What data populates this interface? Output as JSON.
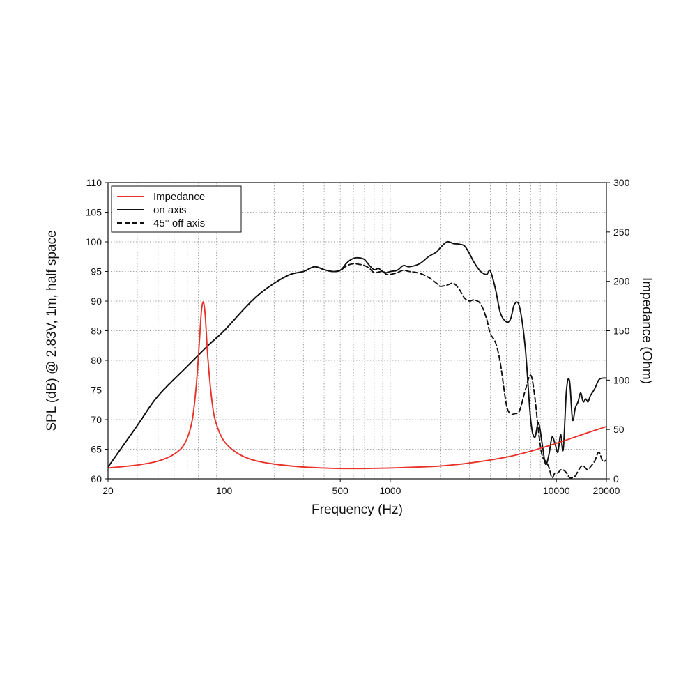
{
  "chart_data": {
    "type": "line",
    "xscale": "log",
    "xlabel": "Frequency (Hz)",
    "ylabel_left": "SPL (dB) @ 2.83V, 1m, half space",
    "ylabel_right": "Impedance (Ohm)",
    "xlim": [
      20,
      20000
    ],
    "ylim_left": [
      60,
      110
    ],
    "ylim_right": [
      0,
      300
    ],
    "xticks": [
      20,
      100,
      500,
      1000,
      10000,
      20000
    ],
    "xtick_labels": [
      "20",
      "100",
      "500",
      "1000",
      "10000",
      "20000"
    ],
    "yticks_left": [
      60,
      65,
      70,
      75,
      80,
      85,
      90,
      95,
      100,
      105,
      110
    ],
    "yticks_left_labels": [
      "60",
      "65",
      "70",
      "75",
      "80",
      "85",
      "90",
      "95",
      "100",
      "105",
      "110"
    ],
    "yticks_right": [
      0,
      50,
      100,
      150,
      200,
      250,
      300
    ],
    "yticks_right_labels": [
      "0",
      "50",
      "100",
      "150",
      "200",
      "250",
      "300"
    ],
    "grid": true,
    "legend_position": "top-left",
    "series": [
      {
        "name": "Impedance",
        "axis": "right",
        "color": "#e8322a",
        "dash": "solid",
        "x": [
          20,
          30,
          40,
          50,
          58,
          64,
          68,
          71,
          73,
          75,
          77,
          80,
          85,
          90,
          100,
          120,
          150,
          200,
          300,
          400,
          500,
          700,
          1000,
          1500,
          2000,
          3000,
          5000,
          7000,
          10000,
          15000,
          20000
        ],
        "y": [
          11,
          14,
          18,
          25,
          36,
          58,
          95,
          140,
          170,
          179,
          165,
          120,
          75,
          55,
          38,
          26,
          19,
          15,
          12,
          11,
          10.5,
          10.5,
          11,
          12,
          13,
          16,
          22,
          28,
          36,
          46,
          53
        ]
      },
      {
        "name": "on axis",
        "axis": "left",
        "color": "#111111",
        "dash": "solid",
        "x": [
          20,
          30,
          40,
          60,
          80,
          100,
          130,
          160,
          200,
          250,
          300,
          350,
          400,
          450,
          500,
          550,
          600,
          650,
          700,
          750,
          800,
          850,
          900,
          950,
          1000,
          1100,
          1200,
          1300,
          1500,
          1700,
          1900,
          2000,
          2200,
          2400,
          2600,
          2800,
          3000,
          3200,
          3500,
          3800,
          4000,
          4300,
          4600,
          5000,
          5300,
          5600,
          6000,
          6500,
          7000,
          7400,
          7800,
          8200,
          8600,
          9000,
          9400,
          9800,
          10200,
          10600,
          11000,
          11500,
          12000,
          12500,
          13000,
          13500,
          14000,
          14500,
          15000,
          15500,
          16000,
          17000,
          18000,
          19000,
          20000
        ],
        "y": [
          62,
          69,
          74,
          79,
          82.5,
          85,
          88.5,
          91,
          93,
          94.5,
          95,
          95.8,
          95.3,
          95,
          95.2,
          96.5,
          97.2,
          97.3,
          97,
          96,
          95.3,
          95.5,
          95,
          94.8,
          95,
          95.2,
          96,
          95.8,
          96.3,
          97.5,
          98.3,
          99,
          100,
          99.7,
          99.6,
          99.3,
          98,
          96.5,
          95,
          94.5,
          95.1,
          92,
          88,
          86.5,
          87,
          89.5,
          89,
          82,
          70,
          67,
          69.5,
          66,
          62.5,
          64,
          67,
          66,
          64.5,
          67.5,
          65,
          75,
          76.5,
          70,
          72,
          73,
          74.5,
          73,
          73.5,
          73,
          74,
          75.2,
          76.7,
          77,
          77
        ]
      },
      {
        "name": "45° off axis",
        "axis": "left",
        "color": "#111111",
        "dash": "dashed",
        "x": [
          20,
          30,
          40,
          60,
          80,
          100,
          130,
          160,
          200,
          250,
          300,
          350,
          400,
          450,
          500,
          550,
          600,
          650,
          700,
          750,
          800,
          850,
          900,
          950,
          1000,
          1100,
          1200,
          1300,
          1500,
          1700,
          1900,
          2000,
          2200,
          2400,
          2600,
          2800,
          3000,
          3200,
          3500,
          3800,
          4000,
          4300,
          4600,
          5000,
          5300,
          5600,
          6000,
          6500,
          7000,
          7400,
          7800,
          8200,
          8600,
          9000,
          9400,
          9800,
          10200,
          10600,
          11000,
          11500,
          12000,
          12500,
          13000,
          13500,
          14000,
          14500,
          15000,
          15500,
          16000,
          17000,
          18000,
          19000,
          20000
        ],
        "y": [
          62,
          69,
          74,
          79,
          82.5,
          85,
          88.5,
          91,
          93,
          94.5,
          95,
          95.8,
          95.3,
          95,
          95.2,
          96,
          96.3,
          96.2,
          96,
          95.5,
          94.8,
          94.9,
          95,
          94.5,
          94.5,
          94.8,
          95.2,
          95,
          94.7,
          94,
          93,
          92.5,
          92.7,
          93,
          92,
          90.5,
          90,
          90.2,
          89.5,
          87,
          84.5,
          83,
          79.5,
          72.5,
          71,
          71,
          71.5,
          75,
          77.5,
          74,
          68,
          64,
          63,
          62,
          60.2,
          61,
          61,
          61.5,
          61.5,
          61,
          60.2,
          60.2,
          60.5,
          61.3,
          62,
          62.2,
          61.8,
          61.5,
          62,
          63,
          64.5,
          63,
          63.2
        ]
      }
    ]
  }
}
